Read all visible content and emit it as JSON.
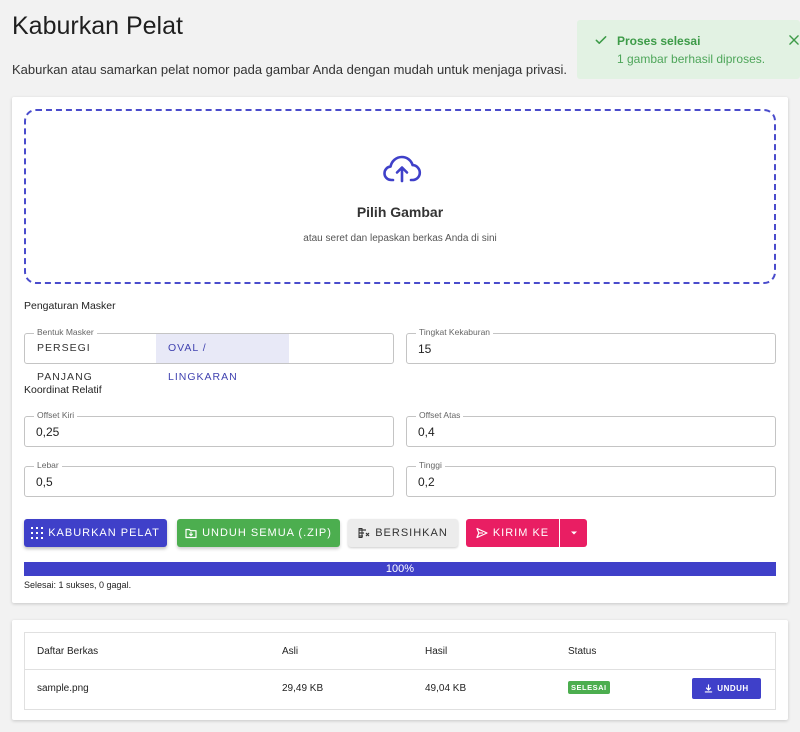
{
  "header": {
    "title": "Kaburkan Pelat",
    "description": "Kaburkan atau samarkan pelat nomor pada gambar Anda dengan mudah untuk menjaga privasi."
  },
  "toast": {
    "title": "Proses selesai",
    "message": "1 gambar berhasil diproses."
  },
  "dropzone": {
    "title": "Pilih Gambar",
    "subtitle": "atau seret dan lepaskan berkas Anda di sini",
    "icon": "cloud-upload-icon"
  },
  "mask": {
    "section_label": "Pengaturan Masker",
    "shape_label": "Bentuk Masker",
    "shape_options": [
      "PERSEGI PANJANG",
      "OVAL / LINGKARAN"
    ],
    "shape_selected": "OVAL / LINGKARAN",
    "blur_label": "Tingkat Kekaburan",
    "blur_value": "15"
  },
  "coords": {
    "section_label": "Koordinat Relatif",
    "offset_left_label": "Offset Kiri",
    "offset_left_value": "0,25",
    "offset_top_label": "Offset Atas",
    "offset_top_value": "0,4",
    "width_label": "Lebar",
    "width_value": "0,5",
    "height_label": "Tinggi",
    "height_value": "0,2"
  },
  "actions": {
    "blur_label": "KABURKAN PELAT",
    "zip_label": "UNDUH SEMUA (.ZIP)",
    "clear_label": "BERSIHKAN",
    "send_label": "KIRIM KE"
  },
  "progress": {
    "value": 100,
    "label": "100%",
    "summary": "Selesai: 1 sukses, 0 gagal."
  },
  "files": {
    "columns": [
      "Daftar Berkas",
      "Asli",
      "Hasil",
      "Status"
    ],
    "rows": [
      {
        "name": "sample.png",
        "original": "29,49 KB",
        "result": "49,04 KB",
        "status": "SELESAI",
        "action": "UNDUH"
      }
    ]
  },
  "colors": {
    "primary": "#3f40c9",
    "success": "#4cae4f",
    "pink": "#e91e63",
    "toast_bg": "#e2f2e3"
  }
}
